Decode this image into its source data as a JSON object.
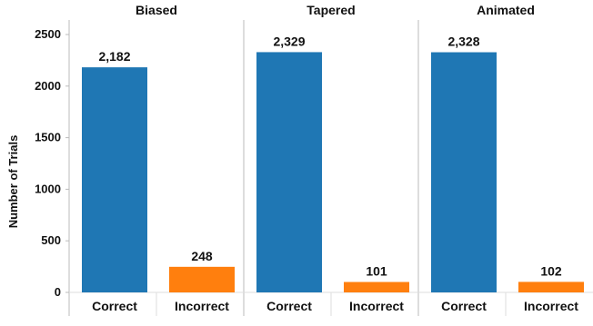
{
  "chart_data": {
    "type": "bar",
    "ylabel": "Number of Trials",
    "ylim": [
      0,
      2500
    ],
    "yticks": [
      0,
      500,
      1000,
      1500,
      2000,
      2500
    ],
    "grid": false,
    "legend": "none",
    "categories": [
      "Correct",
      "Incorrect"
    ],
    "colors": {
      "Correct": "#1f77b4",
      "Incorrect": "#ff7f0e"
    },
    "panels": [
      {
        "title": "Biased",
        "values": [
          2182,
          248
        ],
        "labels": [
          "2,182",
          "248"
        ]
      },
      {
        "title": "Tapered",
        "values": [
          2329,
          101
        ],
        "labels": [
          "2,329",
          "101"
        ]
      },
      {
        "title": "Animated",
        "values": [
          2328,
          102
        ],
        "labels": [
          "2,328",
          "102"
        ]
      }
    ]
  }
}
